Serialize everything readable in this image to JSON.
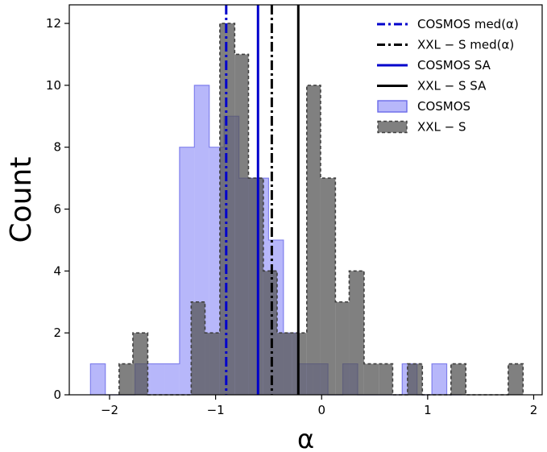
{
  "chart_data": {
    "type": "histogram",
    "xlabel": "α",
    "ylabel": "Count",
    "xlim": [
      -2.38,
      2.08
    ],
    "ylim": [
      0,
      12.6
    ],
    "x_ticks": [
      -2,
      -1,
      0,
      1,
      2
    ],
    "y_ticks": [
      0,
      2,
      4,
      6,
      8,
      10,
      12
    ],
    "x_tick_labels": [
      "−2",
      "−1",
      "0",
      "1",
      "2"
    ],
    "y_tick_labels": [
      "0",
      "2",
      "4",
      "6",
      "8",
      "10",
      "12"
    ],
    "grid": false,
    "legend_position": "top-right",
    "series": [
      {
        "name": "COSMOS",
        "style": "filled",
        "color": "#7b7bf5",
        "edges": [
          -2.18,
          -2.04,
          -1.9,
          -1.76,
          -1.62,
          -1.48,
          -1.34,
          -1.2,
          -1.06,
          -0.92,
          -0.78,
          -0.64,
          -0.5,
          -0.36,
          -0.22,
          -0.08,
          0.06,
          0.2,
          0.34,
          0.48,
          0.62,
          0.76,
          0.9,
          1.04,
          1.18,
          1.32
        ],
        "counts": [
          1,
          0,
          0,
          1,
          1,
          1,
          8,
          10,
          8,
          9,
          7,
          7,
          5,
          2,
          1,
          1,
          0,
          1,
          0,
          0,
          0,
          1,
          0,
          1,
          0
        ]
      },
      {
        "name": "XXL − S",
        "style": "dashed-filled",
        "color": "#555555",
        "edges": [
          -1.91,
          -1.78,
          -1.64,
          -1.5,
          -1.37,
          -1.23,
          -1.1,
          -0.96,
          -0.82,
          -0.69,
          -0.55,
          -0.42,
          -0.28,
          -0.14,
          -0.01,
          0.13,
          0.26,
          0.4,
          0.54,
          0.67,
          0.81,
          0.95,
          1.08,
          1.22,
          1.36,
          1.49,
          1.63,
          1.76,
          1.9
        ],
        "counts": [
          1,
          2,
          0,
          0,
          0,
          3,
          2,
          12,
          11,
          7,
          4,
          2,
          2,
          10,
          7,
          3,
          4,
          1,
          1,
          0,
          1,
          0,
          0,
          1,
          0,
          0,
          0,
          1
        ]
      }
    ],
    "vlines": [
      {
        "name": "COSMOS med(α)",
        "x": -0.9,
        "color": "#0000cc",
        "style": "dashdot"
      },
      {
        "name": "XXL − S med(α)",
        "x": -0.47,
        "color": "#000000",
        "style": "dashdot"
      },
      {
        "name": "COSMOS SA",
        "x": -0.6,
        "color": "#0000cc",
        "style": "solid"
      },
      {
        "name": "XXL − S SA",
        "x": -0.22,
        "color": "#000000",
        "style": "solid"
      }
    ],
    "legend": [
      {
        "label": "COSMOS med(α)",
        "kind": "line",
        "color": "#0000cc",
        "dash": "dashdot"
      },
      {
        "label": "XXL − S med(α)",
        "kind": "line",
        "color": "#000000",
        "dash": "dashdot"
      },
      {
        "label": "COSMOS SA",
        "kind": "line",
        "color": "#0000cc",
        "dash": "solid"
      },
      {
        "label": "XXL − S SA",
        "kind": "line",
        "color": "#000000",
        "dash": "solid"
      },
      {
        "label": "COSMOS",
        "kind": "patch",
        "color": "#7b7bf5",
        "dash": "solid"
      },
      {
        "label": "XXL − S",
        "kind": "patch",
        "color": "#555555",
        "dash": "dashed"
      }
    ]
  }
}
